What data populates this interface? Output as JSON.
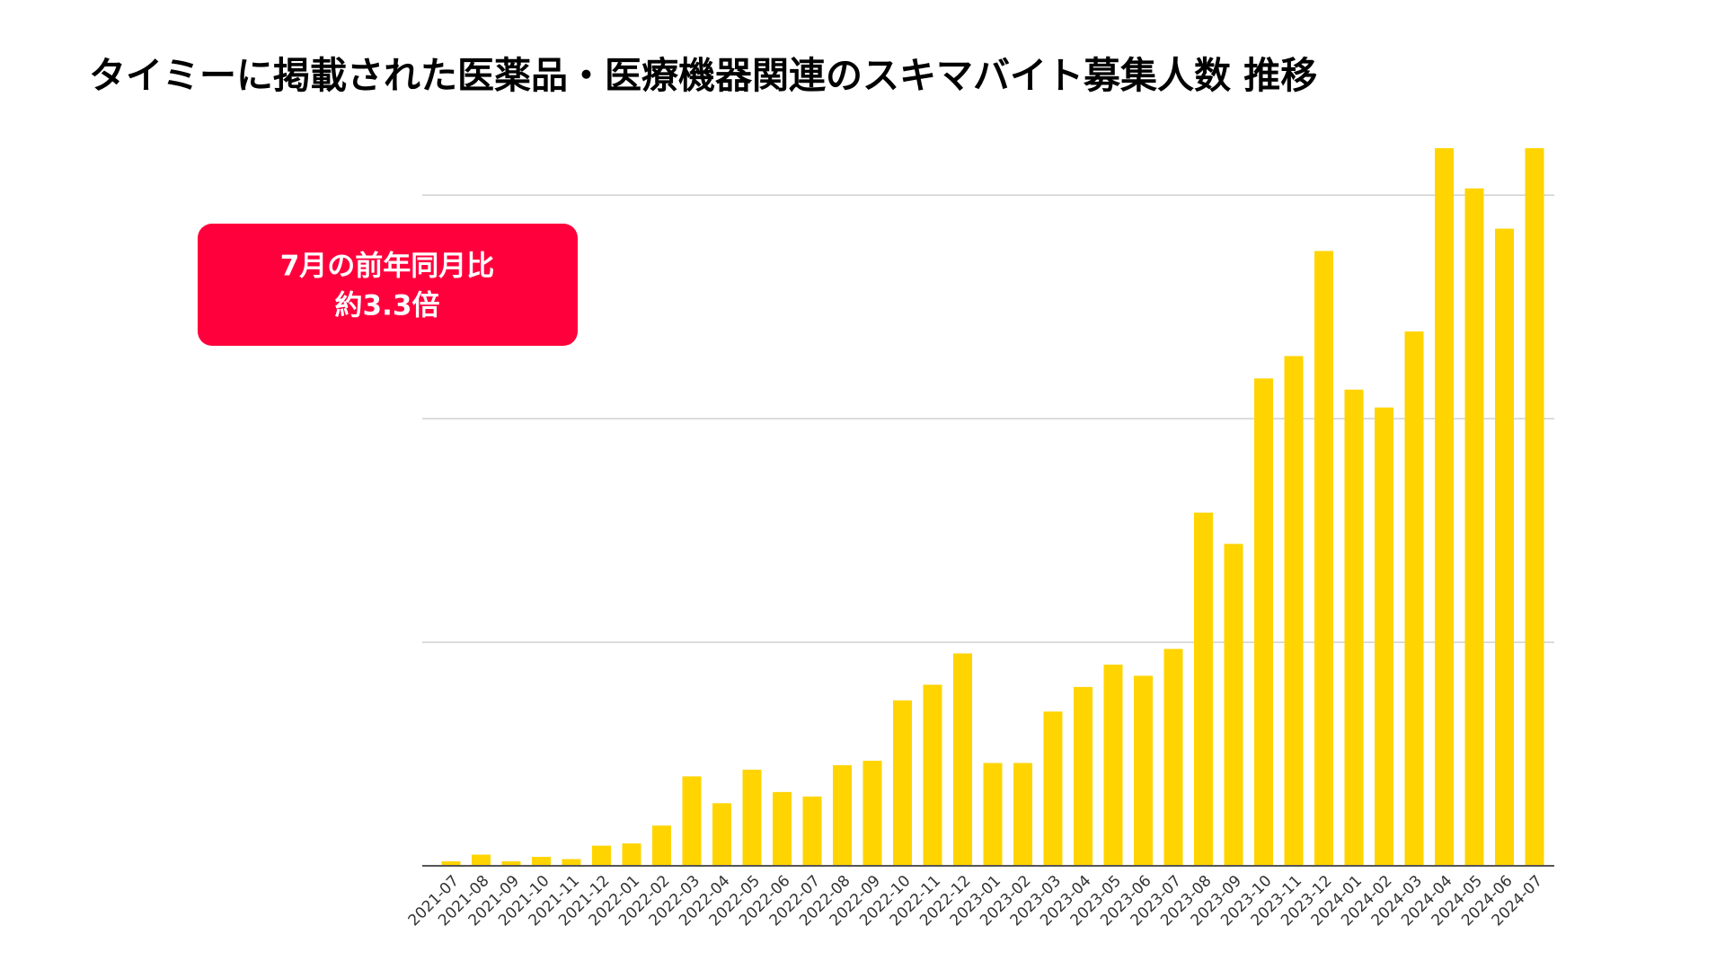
{
  "chart_data": {
    "type": "bar",
    "title": "タイミーに掲載された医薬品・医療機器関連のスキマバイト募集人数 推移",
    "annotations": [
      "7月の前年同月比",
      "約3.3倍"
    ],
    "categories": [
      "2021-07",
      "2021-08",
      "2021-09",
      "2021-10",
      "2021-11",
      "2021-12",
      "2022-01",
      "2022-02",
      "2022-03",
      "2022-04",
      "2022-05",
      "2022-06",
      "2022-07",
      "2022-08",
      "2022-09",
      "2022-10",
      "2022-11",
      "2022-12",
      "2023-01",
      "2023-02",
      "2023-03",
      "2023-04",
      "2023-05",
      "2023-06",
      "2023-07",
      "2023-08",
      "2023-09",
      "2023-10",
      "2023-11",
      "2023-12",
      "2024-01",
      "2024-02",
      "2024-03",
      "2024-04",
      "2024-05",
      "2024-06",
      "2024-07"
    ],
    "values": [
      0.02,
      0.05,
      0.02,
      0.04,
      0.03,
      0.09,
      0.1,
      0.18,
      0.4,
      0.28,
      0.43,
      0.33,
      0.31,
      0.45,
      0.47,
      0.74,
      0.81,
      0.95,
      0.46,
      0.46,
      0.69,
      0.8,
      0.9,
      0.85,
      0.97,
      1.58,
      1.44,
      2.18,
      2.28,
      2.75,
      2.13,
      2.05,
      2.39,
      3.21,
      3.03,
      2.85,
      3.21
    ],
    "color": "#ffd400",
    "annotation_color": "#ff003c",
    "ylim": [
      0,
      3.25
    ],
    "yticks": [
      0,
      1,
      2,
      3
    ],
    "grid": true
  }
}
